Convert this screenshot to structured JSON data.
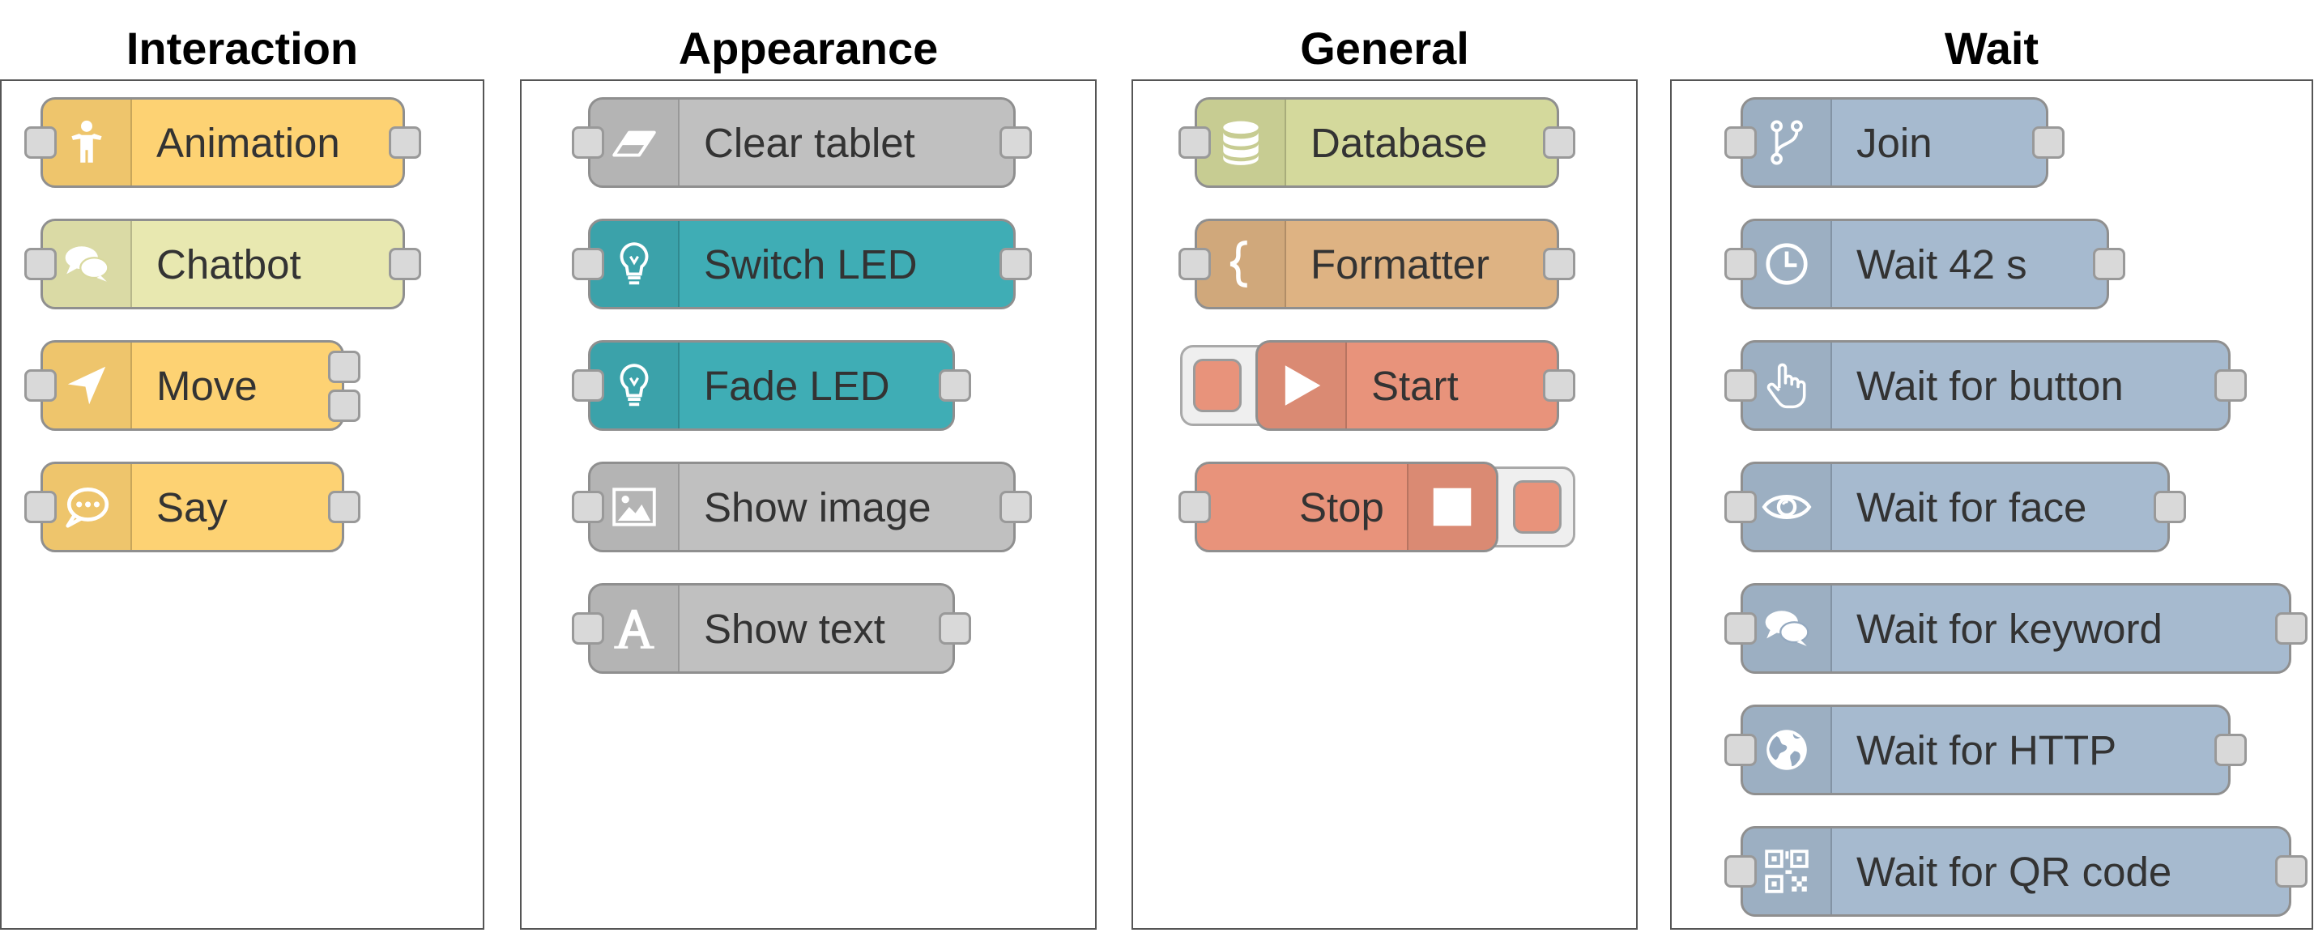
{
  "columns": [
    {
      "title": "Interaction",
      "nodes": [
        {
          "label": "Animation",
          "icon": "person-icon",
          "color": "#fdd273"
        },
        {
          "label": "Chatbot",
          "icon": "chat-bubbles-icon",
          "color": "#e8e8b0"
        },
        {
          "label": "Move",
          "icon": "navigation-arrow-icon",
          "color": "#fdd273"
        },
        {
          "label": "Say",
          "icon": "speech-bubble-icon",
          "color": "#fdd273"
        }
      ]
    },
    {
      "title": "Appearance",
      "nodes": [
        {
          "label": "Clear tablet",
          "icon": "eraser-icon",
          "color": "#c0c0c0"
        },
        {
          "label": "Switch LED",
          "icon": "lightbulb-icon",
          "color": "#3fadb5"
        },
        {
          "label": "Fade LED",
          "icon": "lightbulb-icon",
          "color": "#3fadb5"
        },
        {
          "label": "Show image",
          "icon": "image-icon",
          "color": "#c0c0c0"
        },
        {
          "label": "Show text",
          "icon": "letter-a-icon",
          "color": "#c0c0c0"
        }
      ]
    },
    {
      "title": "General",
      "nodes": [
        {
          "label": "Database",
          "icon": "database-icon",
          "color": "#d4d99c"
        },
        {
          "label": "Formatter",
          "icon": "curly-brace-icon",
          "color": "#deb383"
        },
        {
          "label": "Start",
          "icon": "play-icon",
          "color": "#e8937b"
        },
        {
          "label": "Stop",
          "icon": "stop-icon",
          "color": "#e8937b"
        }
      ]
    },
    {
      "title": "Wait",
      "nodes": [
        {
          "label": "Join",
          "icon": "fork-icon",
          "color": "#a6bacf"
        },
        {
          "label": "Wait 42 s",
          "icon": "clock-icon",
          "color": "#a6bacf"
        },
        {
          "label": "Wait for button",
          "icon": "pointing-hand-icon",
          "color": "#a6bacf"
        },
        {
          "label": "Wait for face",
          "icon": "eye-icon",
          "color": "#a6bacf"
        },
        {
          "label": "Wait for keyword",
          "icon": "chat-bubbles-icon",
          "color": "#a6bacf"
        },
        {
          "label": "Wait for HTTP",
          "icon": "globe-icon",
          "color": "#a6bacf"
        },
        {
          "label": "Wait for QR code",
          "icon": "qr-code-icon",
          "color": "#a6bacf"
        }
      ]
    }
  ]
}
